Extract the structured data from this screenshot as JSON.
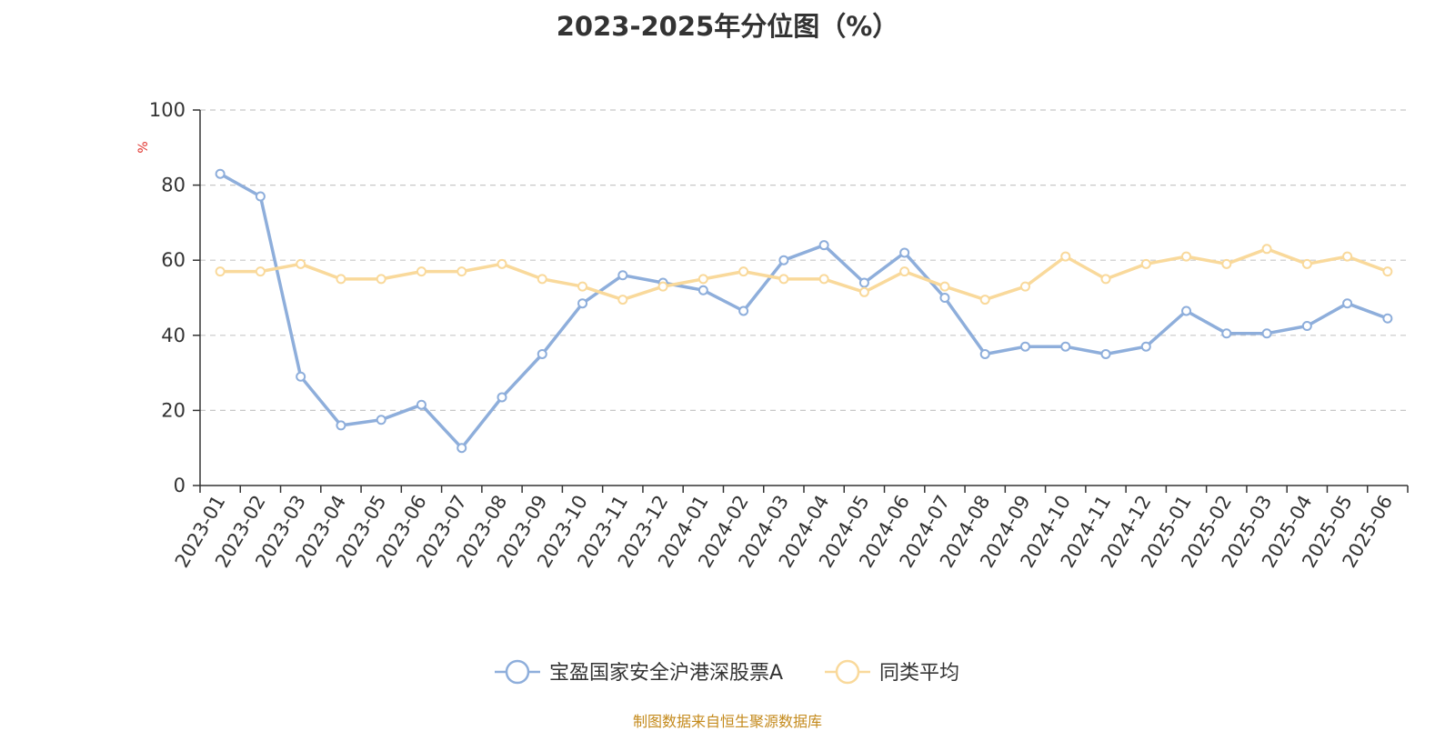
{
  "chart_data": {
    "type": "line",
    "title": "2023-2025年分位图（%）",
    "ylabel": "%",
    "ylim": [
      0,
      100
    ],
    "yticks": [
      0,
      20,
      40,
      60,
      80,
      100
    ],
    "grid": true,
    "legend_position": "bottom",
    "categories": [
      "2023-01",
      "2023-02",
      "2023-03",
      "2023-04",
      "2023-05",
      "2023-06",
      "2023-07",
      "2023-08",
      "2023-09",
      "2023-10",
      "2023-11",
      "2023-12",
      "2024-01",
      "2024-02",
      "2024-03",
      "2024-04",
      "2024-05",
      "2024-06",
      "2024-07",
      "2024-08",
      "2024-09",
      "2024-10",
      "2024-11",
      "2024-12",
      "2025-01",
      "2025-02",
      "2025-03",
      "2025-04",
      "2025-05",
      "2025-06"
    ],
    "series": [
      {
        "name": "宝盈国家安全沪港深股票A",
        "color": "#8eaedb",
        "values": [
          83,
          77,
          29,
          16,
          17.5,
          21.5,
          10,
          23.5,
          35,
          48.5,
          56,
          54,
          52,
          46.5,
          60,
          64,
          54,
          62,
          50,
          35,
          37,
          37,
          35,
          37,
          46.5,
          40.5,
          40.5,
          42.5,
          48.5,
          44.5
        ]
      },
      {
        "name": "同类平均",
        "color": "#f9d99b",
        "values": [
          57,
          57,
          59,
          55,
          55,
          57,
          57,
          59,
          55,
          53,
          49.5,
          53,
          55,
          57,
          55,
          55,
          51.5,
          57,
          53,
          49.5,
          53,
          61,
          55,
          59,
          61,
          59,
          63,
          59,
          61,
          57
        ]
      }
    ]
  },
  "source_note": "制图数据来自恒生聚源数据库"
}
